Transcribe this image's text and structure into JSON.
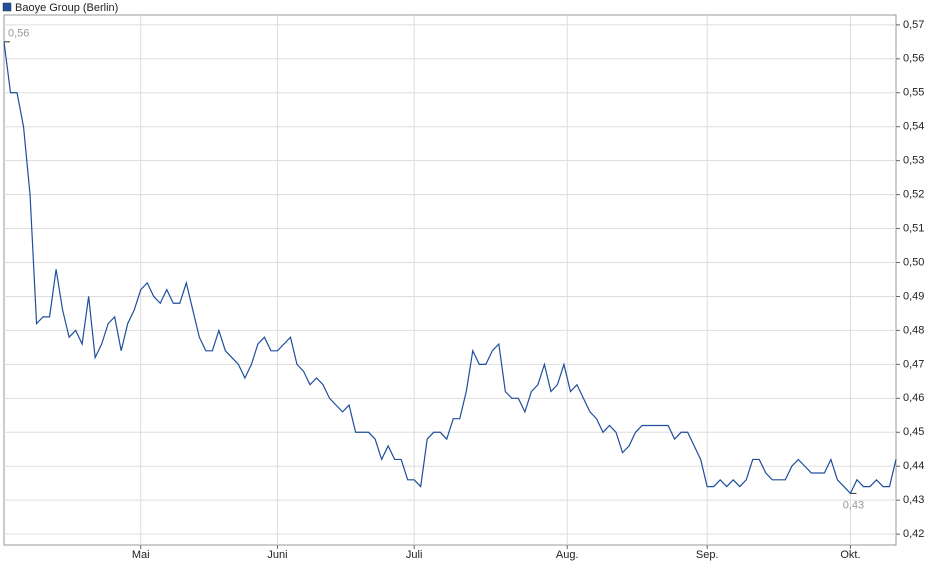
{
  "chart_data": {
    "type": "line",
    "series": [
      {
        "name": "Baoye Group (Berlin)",
        "color": "#1f4e9c",
        "values": [
          0.565,
          0.55,
          0.55,
          0.54,
          0.52,
          0.482,
          0.484,
          0.484,
          0.498,
          0.486,
          0.478,
          0.48,
          0.476,
          0.49,
          0.472,
          0.476,
          0.482,
          0.484,
          0.474,
          0.482,
          0.486,
          0.492,
          0.494,
          0.49,
          0.488,
          0.492,
          0.488,
          0.488,
          0.494,
          0.486,
          0.478,
          0.474,
          0.474,
          0.48,
          0.474,
          0.472,
          0.47,
          0.466,
          0.47,
          0.476,
          0.478,
          0.474,
          0.474,
          0.476,
          0.478,
          0.47,
          0.468,
          0.464,
          0.466,
          0.464,
          0.46,
          0.458,
          0.456,
          0.458,
          0.45,
          0.45,
          0.45,
          0.448,
          0.442,
          0.446,
          0.442,
          0.442,
          0.436,
          0.436,
          0.434,
          0.448,
          0.45,
          0.45,
          0.448,
          0.454,
          0.454,
          0.462,
          0.474,
          0.47,
          0.47,
          0.474,
          0.476,
          0.462,
          0.46,
          0.46,
          0.456,
          0.462,
          0.464,
          0.47,
          0.462,
          0.464,
          0.47,
          0.462,
          0.464,
          0.46,
          0.456,
          0.454,
          0.45,
          0.452,
          0.45,
          0.444,
          0.446,
          0.45,
          0.452,
          0.452,
          0.452,
          0.452,
          0.452,
          0.448,
          0.45,
          0.45,
          0.446,
          0.442,
          0.434,
          0.434,
          0.436,
          0.434,
          0.436,
          0.434,
          0.436,
          0.442,
          0.442,
          0.438,
          0.436,
          0.436,
          0.436,
          0.44,
          0.442,
          0.44,
          0.438,
          0.438,
          0.438,
          0.442,
          0.436,
          0.434,
          0.432,
          0.436,
          0.434,
          0.434,
          0.436,
          0.434,
          0.434,
          0.442
        ]
      }
    ],
    "x": [
      0,
      1,
      2,
      3,
      4,
      5,
      6,
      7,
      8,
      9,
      10,
      11,
      12,
      13,
      14,
      15,
      16,
      17,
      18,
      19,
      20,
      21,
      22,
      23,
      24,
      25,
      26,
      27,
      28,
      29,
      30,
      31,
      32,
      33,
      34,
      35,
      36,
      37,
      38,
      39,
      40,
      41,
      42,
      43,
      44,
      45,
      46,
      47,
      48,
      49,
      50,
      51,
      52,
      53,
      54,
      55,
      56,
      57,
      58,
      59,
      60,
      61,
      62,
      63,
      64,
      65,
      66,
      67,
      68,
      69,
      70,
      71,
      72,
      73,
      74,
      75,
      76,
      77,
      78,
      79,
      80,
      81,
      82,
      83,
      84,
      85,
      86,
      87,
      88,
      89,
      90,
      91,
      92,
      93,
      94,
      95,
      96,
      97,
      98,
      99,
      100,
      101,
      102,
      103,
      104,
      105,
      106,
      107,
      108,
      109,
      110,
      111,
      112,
      113,
      114,
      115,
      116,
      117,
      118,
      119,
      120,
      121,
      122,
      123,
      124,
      125,
      126,
      127,
      128,
      129,
      130,
      131,
      132,
      133,
      134,
      135,
      136,
      137
    ],
    "xlim": [
      0,
      137
    ],
    "xticks": [
      {
        "value": 21,
        "label": "Mai"
      },
      {
        "value": 42,
        "label": "Juni"
      },
      {
        "value": 63,
        "label": "Juli"
      },
      {
        "value": 86.5,
        "label": "Aug."
      },
      {
        "value": 108,
        "label": "Sep."
      },
      {
        "value": 130,
        "label": "Okt."
      }
    ],
    "ylim": [
      0.4168,
      0.5729
    ],
    "yticks": [
      {
        "value": 0.42,
        "label": "0,42"
      },
      {
        "value": 0.43,
        "label": "0,43"
      },
      {
        "value": 0.44,
        "label": "0,44"
      },
      {
        "value": 0.45,
        "label": "0,45"
      },
      {
        "value": 0.46,
        "label": "0,46"
      },
      {
        "value": 0.47,
        "label": "0,47"
      },
      {
        "value": 0.48,
        "label": "0,48"
      },
      {
        "value": 0.49,
        "label": "0,49"
      },
      {
        "value": 0.5,
        "label": "0,50"
      },
      {
        "value": 0.51,
        "label": "0,51"
      },
      {
        "value": 0.52,
        "label": "0,52"
      },
      {
        "value": 0.53,
        "label": "0,53"
      },
      {
        "value": 0.54,
        "label": "0,54"
      },
      {
        "value": 0.55,
        "label": "0,55"
      },
      {
        "value": 0.56,
        "label": "0,56"
      },
      {
        "value": 0.57,
        "label": "0,57"
      }
    ],
    "annotations": [
      {
        "text": "0,56",
        "x": 0,
        "y": 0.565
      },
      {
        "text": "0,43",
        "x": 130,
        "y": 0.432
      }
    ],
    "grid": true
  }
}
